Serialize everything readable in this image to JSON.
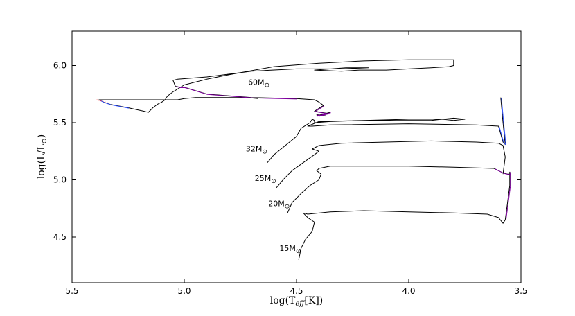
{
  "chart_data": {
    "type": "line",
    "title": "",
    "xlabel": "log(T_eff[K])",
    "ylabel": "log(L/L_⊙)",
    "xlim": [
      5.5,
      3.5
    ],
    "ylim": [
      4.1,
      6.3
    ],
    "x_inverted": true,
    "x_ticks": [
      "5.5",
      "5.0",
      "4.5",
      "4.0",
      "3.5"
    ],
    "y_ticks": [
      "4.5",
      "5.0",
      "5.5",
      "6.0"
    ],
    "grid": false,
    "legend": "none",
    "colors": {
      "track": "#000000",
      "overlay_purple": "#8000a0",
      "overlay_blue": "#3050ff",
      "overlay_red": "#ff2020"
    },
    "mass_labels": [
      {
        "text": "60M",
        "sym": "⊙",
        "x": 4.62,
        "y": 5.83
      },
      {
        "text": "32M",
        "sym": "⊙",
        "x": 4.63,
        "y": 5.25
      },
      {
        "text": "25M",
        "sym": "⊙",
        "x": 4.59,
        "y": 4.99
      },
      {
        "text": "20M",
        "sym": "⊙",
        "x": 4.53,
        "y": 4.77
      },
      {
        "text": "15M",
        "sym": "⊙",
        "x": 4.48,
        "y": 4.38
      }
    ],
    "series": [
      {
        "mass": 60,
        "x": [
          4.67,
          4.72,
          4.8,
          4.9,
          4.95,
          5.0,
          5.03,
          5.04,
          5.05,
          5.06,
          5.08,
          5.12,
          5.15,
          5.17,
          5.2,
          5.3,
          5.38,
          5.36,
          5.33,
          5.25,
          5.18,
          5.16,
          5.14,
          5.12,
          5.1,
          5.085,
          5.08,
          5.07,
          5.05,
          5.0,
          4.9,
          4.8,
          4.6,
          4.4,
          4.2,
          4.0,
          3.9,
          3.8,
          3.8,
          3.82,
          3.9,
          4.0,
          4.1,
          4.22,
          4.3,
          4.42,
          4.28,
          4.18,
          4.3,
          4.5,
          4.7,
          4.9,
          5.03,
          5.05,
          5.04,
          5.02,
          5.0,
          4.9,
          4.7,
          4.5,
          4.42,
          4.4,
          4.38,
          4.42,
          4.36,
          4.41,
          4.35,
          4.39,
          4.4,
          4.41,
          4.37
        ],
        "y": [
          5.71,
          5.72,
          5.72,
          5.72,
          5.72,
          5.71,
          5.7,
          5.7,
          5.7,
          5.7,
          5.7,
          5.7,
          5.7,
          5.7,
          5.7,
          5.7,
          5.7,
          5.68,
          5.66,
          5.63,
          5.6,
          5.59,
          5.63,
          5.66,
          5.68,
          5.7,
          5.72,
          5.74,
          5.77,
          5.83,
          5.88,
          5.92,
          5.99,
          6.02,
          6.04,
          6.05,
          6.05,
          6.05,
          6.0,
          5.99,
          5.98,
          5.97,
          5.96,
          5.96,
          5.95,
          5.96,
          5.98,
          5.98,
          5.97,
          5.97,
          5.95,
          5.9,
          5.88,
          5.87,
          5.82,
          5.81,
          5.81,
          5.75,
          5.72,
          5.71,
          5.7,
          5.68,
          5.65,
          5.6,
          5.58,
          5.56,
          5.59,
          5.57,
          5.56,
          5.57,
          5.56
        ]
      },
      {
        "mass": 32,
        "x": [
          4.63,
          4.6,
          4.55,
          4.5,
          4.48,
          4.44,
          4.43,
          4.42,
          4.42,
          4.35,
          4.2,
          4.0,
          3.85,
          3.8,
          3.75,
          3.8,
          3.85,
          3.9,
          4.0,
          4.2,
          4.4,
          4.45,
          4.43,
          4.35,
          4.0,
          3.7,
          3.6,
          3.58,
          3.57,
          3.58,
          3.59
        ],
        "y": [
          5.15,
          5.22,
          5.3,
          5.38,
          5.45,
          5.5,
          5.53,
          5.52,
          5.5,
          5.51,
          5.52,
          5.53,
          5.53,
          5.52,
          5.53,
          5.54,
          5.53,
          5.52,
          5.52,
          5.52,
          5.51,
          5.47,
          5.47,
          5.48,
          5.49,
          5.48,
          5.47,
          5.33,
          5.31,
          5.5,
          5.72
        ]
      },
      {
        "mass": 25,
        "x": [
          4.59,
          4.56,
          4.52,
          4.47,
          4.42,
          4.4,
          4.43,
          4.4,
          4.3,
          4.1,
          3.9,
          3.7,
          3.6,
          3.58,
          3.57,
          3.58
        ],
        "y": [
          4.93,
          5.0,
          5.08,
          5.15,
          5.22,
          5.25,
          5.27,
          5.3,
          5.32,
          5.33,
          5.34,
          5.33,
          5.32,
          5.3,
          5.2,
          5.05
        ]
      },
      {
        "mass": 20,
        "x": [
          4.54,
          4.52,
          4.48,
          4.44,
          4.4,
          4.39,
          4.41,
          4.4,
          4.35,
          4.2,
          4.0,
          3.8,
          3.62,
          3.58,
          3.56,
          3.56,
          3.55
        ],
        "y": [
          4.71,
          4.8,
          4.88,
          4.95,
          5.0,
          5.05,
          5.08,
          5.1,
          5.12,
          5.12,
          5.12,
          5.11,
          5.1,
          5.06,
          5.05,
          5.05,
          5.05
        ]
      },
      {
        "mass": 15,
        "x": [
          4.49,
          4.48,
          4.46,
          4.43,
          4.42,
          4.45,
          4.47,
          4.45,
          4.35,
          4.2,
          4.0,
          3.8,
          3.65,
          3.6,
          3.58,
          3.57,
          3.56,
          3.55,
          3.55
        ],
        "y": [
          4.3,
          4.4,
          4.48,
          4.55,
          4.63,
          4.67,
          4.71,
          4.7,
          4.72,
          4.73,
          4.72,
          4.71,
          4.7,
          4.67,
          4.62,
          4.65,
          4.8,
          4.95,
          5.07
        ]
      }
    ]
  }
}
